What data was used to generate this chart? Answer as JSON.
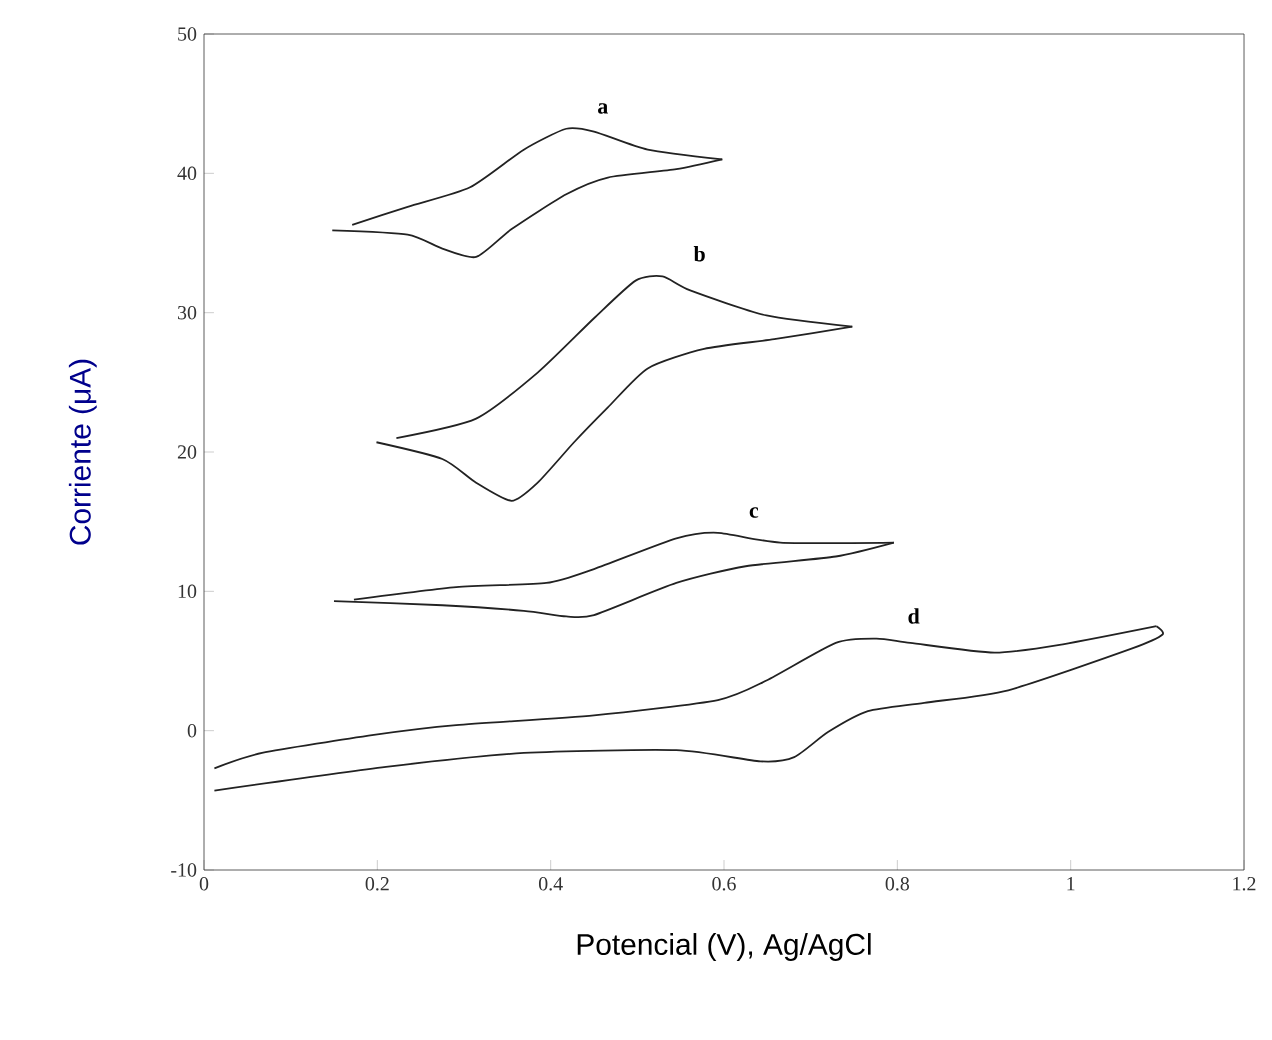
{
  "chart_data": {
    "type": "line",
    "xlabel": "Potencial (V), Ag/AgCl",
    "ylabel": "Corriente (μA)",
    "xlim": [
      0,
      1.2
    ],
    "xticks": [
      0,
      0.2,
      0.4,
      0.6,
      0.8,
      1,
      1.2
    ],
    "ylim": [
      -10,
      50
    ],
    "yticks": [
      -10,
      0,
      10,
      20,
      30,
      40,
      50
    ],
    "grid": false,
    "legend": false,
    "marker": "none",
    "line_style": "solid",
    "series": [
      {
        "name": "a",
        "color": "#222222",
        "x": [
          0.171,
          0.235,
          0.307,
          0.369,
          0.418,
          0.45,
          0.512,
          0.598
        ],
        "values": [
          36.3,
          37.6,
          39.0,
          41.7,
          43.2,
          43.0,
          41.7,
          41.0
        ]
      },
      {
        "color": "#222222",
        "x": [
          0.598,
          0.545,
          0.466,
          0.418,
          0.355,
          0.314,
          0.275,
          0.235,
          0.148
        ],
        "values": [
          41.0,
          40.3,
          39.7,
          38.5,
          36.0,
          34.0,
          34.6,
          35.6,
          35.9
        ]
      },
      {
        "name": "b",
        "color": "#222222",
        "x": [
          0.222,
          0.314,
          0.385,
          0.45,
          0.498,
          0.529,
          0.561,
          0.649,
          0.748
        ],
        "values": [
          21.0,
          22.4,
          25.7,
          29.6,
          32.3,
          32.6,
          31.6,
          29.8,
          29.0
        ]
      },
      {
        "color": "#222222",
        "x": [
          0.748,
          0.658,
          0.577,
          0.512,
          0.466,
          0.427,
          0.385,
          0.355,
          0.314,
          0.275,
          0.199
        ],
        "values": [
          29.0,
          28.1,
          27.4,
          26.0,
          23.2,
          20.7,
          17.8,
          16.5,
          17.8,
          19.5,
          20.7
        ]
      },
      {
        "name": "c",
        "color": "#222222",
        "x": [
          0.173,
          0.291,
          0.395,
          0.45,
          0.545,
          0.593,
          0.665,
          0.796
        ],
        "values": [
          9.4,
          10.3,
          10.6,
          11.6,
          13.8,
          14.2,
          13.5,
          13.5
        ]
      },
      {
        "color": "#222222",
        "x": [
          0.796,
          0.729,
          0.625,
          0.545,
          0.45,
          0.418,
          0.369,
          0.275,
          0.15
        ],
        "values": [
          13.5,
          12.5,
          11.8,
          10.6,
          8.3,
          8.2,
          8.6,
          9.0,
          9.3
        ]
      },
      {
        "name": "d",
        "color": "#222222",
        "x": [
          0.012,
          0.067,
          0.196,
          0.291,
          0.45,
          0.593,
          0.649,
          0.729,
          0.776,
          0.815,
          0.912,
          0.991,
          1.099
        ],
        "values": [
          -2.7,
          -1.6,
          -0.3,
          0.4,
          1.1,
          2.2,
          3.6,
          6.3,
          6.6,
          6.3,
          5.6,
          6.2,
          7.5
        ]
      },
      {
        "color": "#222222",
        "x": [
          1.099,
          1.106,
          1.071,
          0.928,
          0.831,
          0.766,
          0.72,
          0.681,
          0.642,
          0.545,
          0.369,
          0.21,
          0.012
        ],
        "values": [
          7.5,
          6.9,
          5.9,
          2.9,
          2.0,
          1.4,
          -0.1,
          -1.9,
          -2.2,
          -1.4,
          -1.6,
          -2.6,
          -4.3
        ]
      }
    ]
  }
}
